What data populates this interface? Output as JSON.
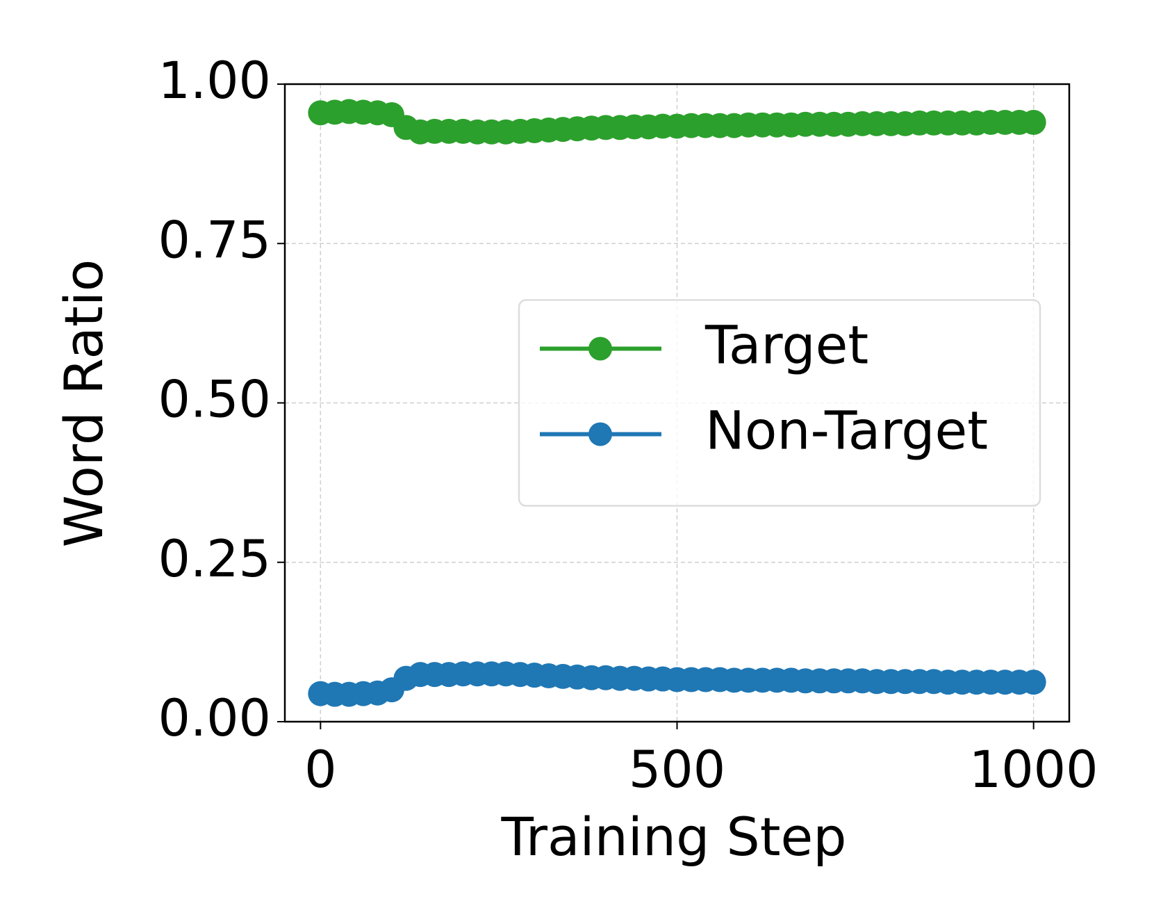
{
  "chart_data": {
    "type": "line",
    "xlabel": "Training Step",
    "ylabel": "Word Ratio",
    "x": [
      0,
      20,
      40,
      60,
      80,
      100,
      120,
      140,
      160,
      180,
      200,
      220,
      240,
      260,
      280,
      300,
      320,
      340,
      360,
      380,
      400,
      420,
      440,
      460,
      480,
      500,
      520,
      540,
      560,
      580,
      600,
      620,
      640,
      660,
      680,
      700,
      720,
      740,
      760,
      780,
      800,
      820,
      840,
      860,
      880,
      900,
      920,
      940,
      960,
      980,
      1000
    ],
    "series": [
      {
        "name": "Target",
        "color": "#2ca02c",
        "values": [
          0.955,
          0.956,
          0.957,
          0.956,
          0.955,
          0.952,
          0.932,
          0.925,
          0.926,
          0.926,
          0.926,
          0.925,
          0.925,
          0.925,
          0.926,
          0.927,
          0.928,
          0.929,
          0.93,
          0.931,
          0.932,
          0.932,
          0.933,
          0.933,
          0.934,
          0.934,
          0.935,
          0.935,
          0.935,
          0.935,
          0.936,
          0.936,
          0.936,
          0.936,
          0.937,
          0.937,
          0.937,
          0.937,
          0.938,
          0.938,
          0.938,
          0.938,
          0.939,
          0.939,
          0.939,
          0.939,
          0.939,
          0.94,
          0.94,
          0.94,
          0.94
        ]
      },
      {
        "name": "Non-Target",
        "color": "#1f77b4",
        "values": [
          0.044,
          0.043,
          0.043,
          0.044,
          0.045,
          0.05,
          0.068,
          0.074,
          0.074,
          0.074,
          0.075,
          0.075,
          0.075,
          0.075,
          0.074,
          0.073,
          0.072,
          0.071,
          0.07,
          0.069,
          0.069,
          0.068,
          0.068,
          0.067,
          0.067,
          0.066,
          0.066,
          0.066,
          0.066,
          0.065,
          0.065,
          0.065,
          0.065,
          0.065,
          0.064,
          0.064,
          0.064,
          0.064,
          0.064,
          0.063,
          0.063,
          0.063,
          0.063,
          0.063,
          0.062,
          0.062,
          0.062,
          0.062,
          0.062,
          0.062,
          0.062
        ]
      }
    ],
    "xlim": [
      -50,
      1050
    ],
    "ylim": [
      0,
      1
    ],
    "xticks": [
      0,
      500,
      1000
    ],
    "yticks": [
      {
        "value": 0,
        "label": "0.00"
      },
      {
        "value": 0.25,
        "label": "0.25"
      },
      {
        "value": 0.5,
        "label": "0.50"
      },
      {
        "value": 0.75,
        "label": "0.75"
      },
      {
        "value": 1,
        "label": "1.00"
      }
    ],
    "grid": true,
    "legend": "center right"
  }
}
